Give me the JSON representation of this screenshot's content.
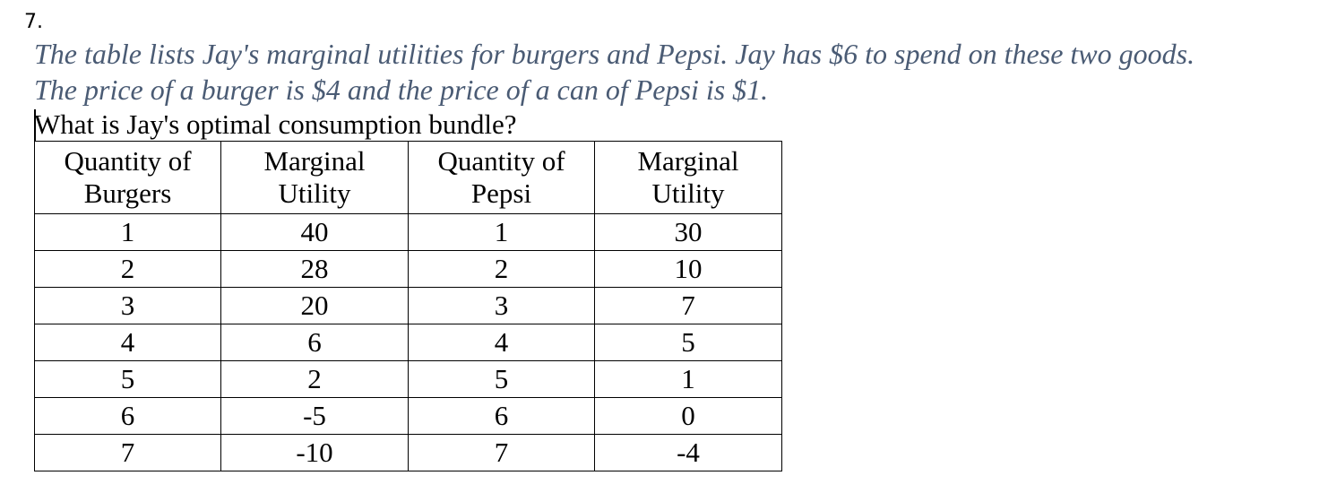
{
  "question_number": "7.",
  "prompt": {
    "line1": "The table lists Jay's marginal utilities for burgers and Pepsi. Jay has $6 to spend on these two goods.",
    "line2": "The price of a burger is $4 and the price of a can of Pepsi is $1."
  },
  "question": "What is Jay's optimal consumption bundle?",
  "table": {
    "headers": [
      [
        "Quantity of",
        "Burgers"
      ],
      [
        "Marginal",
        "Utility"
      ],
      [
        "Quantity of",
        "Pepsi"
      ],
      [
        "Marginal",
        "Utility"
      ]
    ],
    "rows": [
      [
        "1",
        "40",
        "1",
        "30"
      ],
      [
        "2",
        "28",
        "2",
        "10"
      ],
      [
        "3",
        "20",
        "3",
        "7"
      ],
      [
        "4",
        "6",
        "4",
        "5"
      ],
      [
        "5",
        "2",
        "5",
        "1"
      ],
      [
        "6",
        "-5",
        "6",
        "0"
      ],
      [
        "7",
        "-10",
        "7",
        "-4"
      ]
    ]
  },
  "colors": {
    "prompt_text": "#4a5b74",
    "body_text": "#000000"
  }
}
